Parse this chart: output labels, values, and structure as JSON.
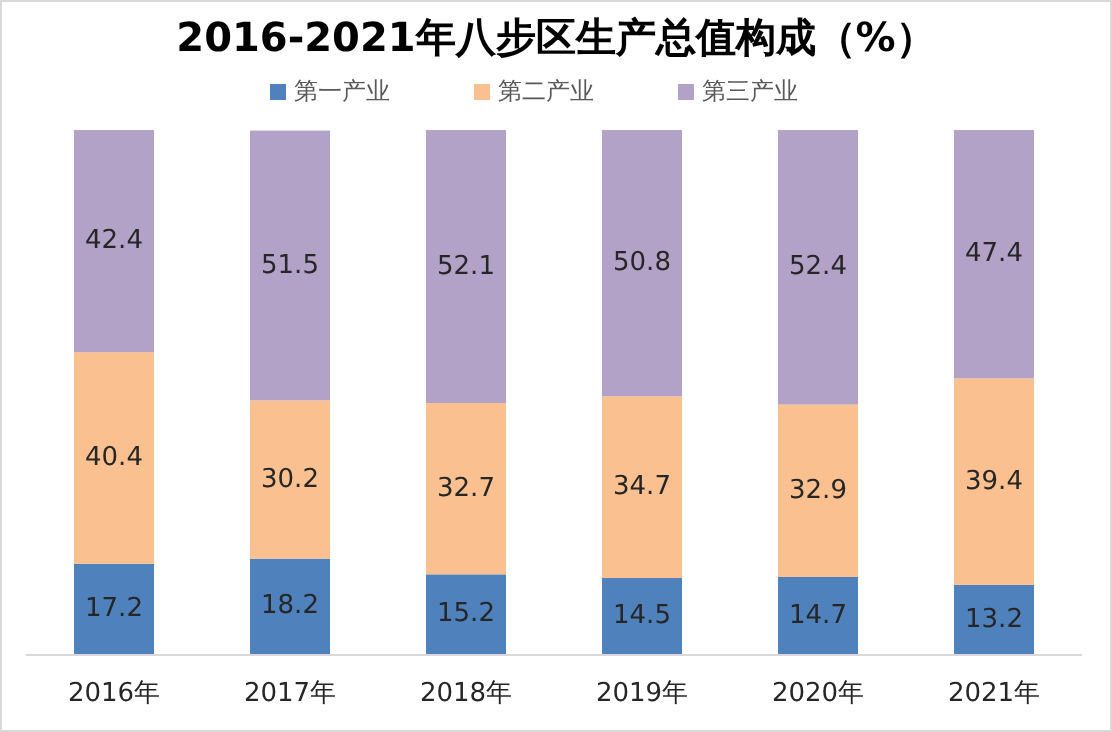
{
  "chart_data": {
    "type": "bar",
    "title": "2016-2021年八步区生产总值构成（%）",
    "stacked": true,
    "data_labels": true,
    "legend": "top",
    "categories": [
      "2016年",
      "2017年",
      "2018年",
      "2019年",
      "2020年",
      "2021年"
    ],
    "series": [
      {
        "name": "第一产业",
        "color": "#4f81bd",
        "values": [
          17.2,
          18.2,
          15.2,
          14.5,
          14.7,
          13.2
        ]
      },
      {
        "name": "第二产业",
        "color": "#fac090",
        "values": [
          40.4,
          30.2,
          32.7,
          34.7,
          32.9,
          39.4
        ]
      },
      {
        "name": "第三产业",
        "color": "#b3a2c7",
        "values": [
          42.4,
          51.5,
          52.1,
          50.8,
          52.4,
          47.4
        ]
      }
    ]
  }
}
